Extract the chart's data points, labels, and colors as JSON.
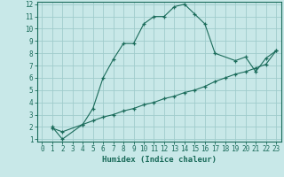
{
  "xlabel": "Humidex (Indice chaleur)",
  "bg_color": "#c8e8e8",
  "line_color": "#1a6b5a",
  "grid_color": "#a0cccc",
  "x_min": 0,
  "x_max": 23,
  "y_min": 1,
  "y_max": 12,
  "x_ticks": [
    0,
    1,
    2,
    3,
    4,
    5,
    6,
    7,
    8,
    9,
    10,
    11,
    12,
    13,
    14,
    15,
    16,
    17,
    18,
    19,
    20,
    21,
    22,
    23
  ],
  "y_ticks": [
    1,
    2,
    3,
    4,
    5,
    6,
    7,
    8,
    9,
    10,
    11,
    12
  ],
  "line1_x": [
    1,
    2,
    4,
    5,
    6,
    7,
    8,
    9,
    10,
    11,
    12,
    13,
    14,
    15,
    16,
    17,
    19,
    20,
    21,
    22,
    23
  ],
  "line1_y": [
    2,
    1,
    2.2,
    3.5,
    6.0,
    7.5,
    8.8,
    8.8,
    10.4,
    11.0,
    11.0,
    11.8,
    12.0,
    11.2,
    10.4,
    8.0,
    7.4,
    7.7,
    6.5,
    7.6,
    8.2
  ],
  "line2_x": [
    1,
    2,
    4,
    5,
    6,
    7,
    8,
    9,
    10,
    11,
    12,
    13,
    14,
    15,
    16,
    17,
    18,
    19,
    20,
    21,
    22,
    23
  ],
  "line2_y": [
    1.9,
    1.6,
    2.2,
    2.5,
    2.8,
    3.0,
    3.3,
    3.5,
    3.8,
    4.0,
    4.3,
    4.5,
    4.8,
    5.0,
    5.3,
    5.7,
    6.0,
    6.3,
    6.5,
    6.8,
    7.1,
    8.2
  ],
  "tick_fontsize": 5.5,
  "xlabel_fontsize": 6.5,
  "marker_size": 3.0,
  "line_width": 0.8
}
